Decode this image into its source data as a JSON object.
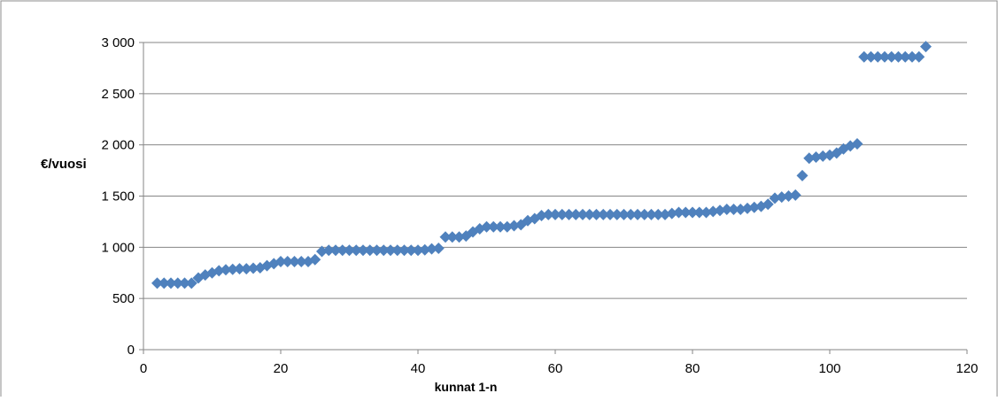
{
  "chart_data": {
    "type": "scatter",
    "title": "",
    "xlabel": "kunnat 1-n",
    "ylabel": "€/vuosi",
    "xlim": [
      0,
      120
    ],
    "ylim": [
      0,
      3000
    ],
    "grid": "horizontal",
    "legend": "none",
    "marker": "diamond",
    "marker_color": "#4f81bd",
    "x_ticks": [
      {
        "value": 0,
        "label": "0"
      },
      {
        "value": 20,
        "label": "20"
      },
      {
        "value": 40,
        "label": "40"
      },
      {
        "value": 60,
        "label": "60"
      },
      {
        "value": 80,
        "label": "80"
      },
      {
        "value": 100,
        "label": "100"
      },
      {
        "value": 120,
        "label": "120"
      }
    ],
    "y_ticks": [
      {
        "value": 0,
        "label": "0"
      },
      {
        "value": 500,
        "label": "500"
      },
      {
        "value": 1000,
        "label": "1 000"
      },
      {
        "value": 1500,
        "label": "1 500"
      },
      {
        "value": 2000,
        "label": "2 000"
      },
      {
        "value": 2500,
        "label": "2 500"
      },
      {
        "value": 3000,
        "label": "3 000"
      }
    ],
    "x": [
      2,
      3,
      4,
      5,
      6,
      7,
      8,
      9,
      10,
      11,
      12,
      13,
      14,
      15,
      16,
      17,
      18,
      19,
      20,
      21,
      22,
      23,
      24,
      25,
      26,
      27,
      28,
      29,
      30,
      31,
      32,
      33,
      34,
      35,
      36,
      37,
      38,
      39,
      40,
      41,
      42,
      43,
      44,
      45,
      46,
      47,
      48,
      49,
      50,
      51,
      52,
      53,
      54,
      55,
      56,
      57,
      58,
      59,
      60,
      61,
      62,
      63,
      64,
      65,
      66,
      67,
      68,
      69,
      70,
      71,
      72,
      73,
      74,
      75,
      76,
      77,
      78,
      79,
      80,
      81,
      82,
      83,
      84,
      85,
      86,
      87,
      88,
      89,
      90,
      91,
      92,
      93,
      94,
      95,
      96,
      97,
      98,
      99,
      100,
      101,
      102,
      103,
      104,
      105,
      106,
      107,
      108,
      109,
      110,
      111,
      112,
      113,
      114
    ],
    "y": [
      650,
      650,
      650,
      650,
      650,
      650,
      700,
      730,
      750,
      770,
      780,
      785,
      790,
      790,
      795,
      800,
      820,
      840,
      860,
      860,
      860,
      860,
      860,
      880,
      960,
      970,
      970,
      970,
      970,
      970,
      970,
      970,
      970,
      970,
      970,
      970,
      970,
      970,
      970,
      975,
      985,
      990,
      1100,
      1100,
      1100,
      1110,
      1150,
      1180,
      1200,
      1200,
      1200,
      1200,
      1210,
      1220,
      1260,
      1280,
      1310,
      1320,
      1320,
      1320,
      1320,
      1320,
      1320,
      1320,
      1320,
      1320,
      1320,
      1320,
      1320,
      1320,
      1320,
      1320,
      1320,
      1320,
      1320,
      1330,
      1340,
      1340,
      1340,
      1340,
      1340,
      1350,
      1360,
      1370,
      1370,
      1370,
      1380,
      1390,
      1400,
      1420,
      1480,
      1490,
      1500,
      1510,
      1700,
      1870,
      1880,
      1890,
      1900,
      1920,
      1960,
      1990,
      2010,
      2860,
      2860,
      2860,
      2860,
      2860,
      2860,
      2860,
      2860,
      2860,
      2960
    ]
  }
}
